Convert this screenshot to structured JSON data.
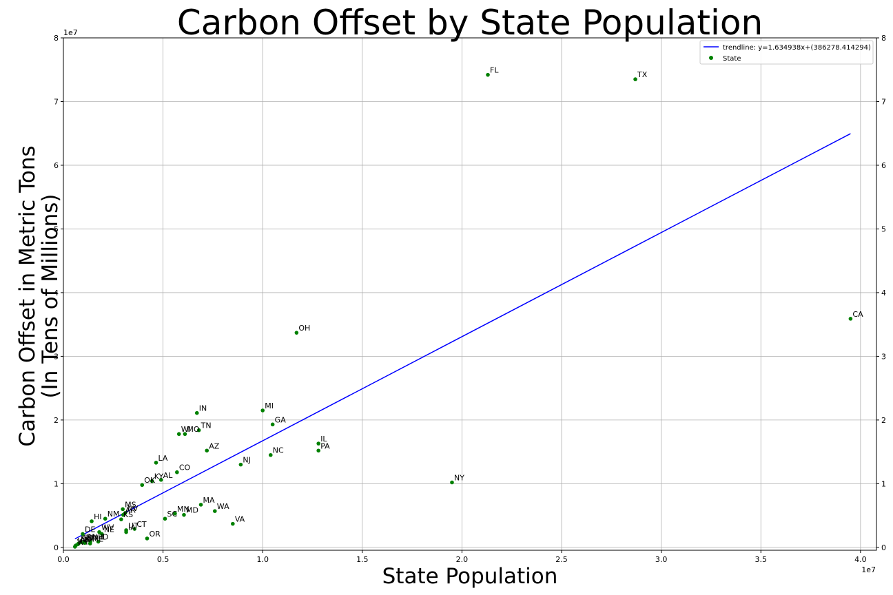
{
  "chart_data": {
    "type": "scatter",
    "title": "Carbon Offset by State Population",
    "xlabel": "State Population",
    "ylabel_line1": "Carbon Offset in Metric Tons",
    "ylabel_line2": "(In Tens of Millions)",
    "x_multiplier": "1e7",
    "y_multiplier": "1e7",
    "xlim": [
      0,
      40800000
    ],
    "ylim": [
      -450000,
      80000000
    ],
    "x_ticks": [
      0,
      5000000,
      10000000,
      15000000,
      20000000,
      25000000,
      30000000,
      35000000,
      40000000
    ],
    "x_tick_labels": [
      "0.0",
      "0.5",
      "1.0",
      "1.5",
      "2.0",
      "2.5",
      "3.0",
      "3.5",
      "4.0"
    ],
    "y_ticks": [
      0,
      10000000,
      20000000,
      30000000,
      40000000,
      50000000,
      60000000,
      70000000,
      80000000
    ],
    "y_tick_labels": [
      "0",
      "1",
      "2",
      "3",
      "4",
      "5",
      "6",
      "7",
      "8"
    ],
    "grid": true,
    "legend_position": "top-right",
    "colors": {
      "points": "#008000",
      "trendline": "#0000ff",
      "grid": "#b0b0b0"
    },
    "series": [
      {
        "name": "trendline: y=1.634938x+(386278.414294)",
        "type": "line",
        "slope": 1.634938,
        "intercept": 386278.414294,
        "x_range": [
          580000,
          39500000
        ]
      },
      {
        "name": "State",
        "type": "scatter",
        "points": [
          {
            "label": "FL",
            "x": 21300000,
            "y": 74200000
          },
          {
            "label": "TX",
            "x": 28700000,
            "y": 73500000
          },
          {
            "label": "CA",
            "x": 39500000,
            "y": 35900000
          },
          {
            "label": "OH",
            "x": 11700000,
            "y": 33700000
          },
          {
            "label": "MI",
            "x": 10000000,
            "y": 21500000
          },
          {
            "label": "IN",
            "x": 6700000,
            "y": 21100000
          },
          {
            "label": "GA",
            "x": 10500000,
            "y": 19300000
          },
          {
            "label": "TN",
            "x": 6800000,
            "y": 18400000
          },
          {
            "label": "WI",
            "x": 5800000,
            "y": 17800000
          },
          {
            "label": "MO",
            "x": 6100000,
            "y": 17800000
          },
          {
            "label": "IL",
            "x": 12800000,
            "y": 16300000
          },
          {
            "label": "PA",
            "x": 12800000,
            "y": 15200000
          },
          {
            "label": "AZ",
            "x": 7200000,
            "y": 15200000
          },
          {
            "label": "NC",
            "x": 10400000,
            "y": 14500000
          },
          {
            "label": "LA",
            "x": 4650000,
            "y": 13300000
          },
          {
            "label": "NJ",
            "x": 8900000,
            "y": 13000000
          },
          {
            "label": "CO",
            "x": 5700000,
            "y": 11800000
          },
          {
            "label": "KY",
            "x": 4450000,
            "y": 10400000
          },
          {
            "label": "AL",
            "x": 4900000,
            "y": 10600000
          },
          {
            "label": "NY",
            "x": 19500000,
            "y": 10200000
          },
          {
            "label": "OK",
            "x": 3950000,
            "y": 9800000
          },
          {
            "label": "MA",
            "x": 6900000,
            "y": 6700000
          },
          {
            "label": "MS",
            "x": 2980000,
            "y": 6000000
          },
          {
            "label": "WA",
            "x": 7600000,
            "y": 5700000
          },
          {
            "label": "NV",
            "x": 3100000,
            "y": 5400000
          },
          {
            "label": "AR",
            "x": 3000000,
            "y": 5100000
          },
          {
            "label": "MN",
            "x": 5600000,
            "y": 5300000
          },
          {
            "label": "MD",
            "x": 6050000,
            "y": 5100000
          },
          {
            "label": "NM",
            "x": 2100000,
            "y": 4500000
          },
          {
            "label": "KS",
            "x": 2900000,
            "y": 4400000
          },
          {
            "label": "SC",
            "x": 5100000,
            "y": 4500000
          },
          {
            "label": "HI",
            "x": 1420000,
            "y": 4100000
          },
          {
            "label": "VA",
            "x": 8500000,
            "y": 3700000
          },
          {
            "label": "UT",
            "x": 3150000,
            "y": 2700000
          },
          {
            "label": "CT",
            "x": 3570000,
            "y": 2900000
          },
          {
            "label": "IA",
            "x": 3150000,
            "y": 2400000
          },
          {
            "label": "WV",
            "x": 1800000,
            "y": 2400000
          },
          {
            "label": "NE",
            "x": 1930000,
            "y": 2100000
          },
          {
            "label": "DE",
            "x": 970000,
            "y": 2100000
          },
          {
            "label": "OR",
            "x": 4200000,
            "y": 1400000
          },
          {
            "label": "ID",
            "x": 1750000,
            "y": 900000
          },
          {
            "label": "NH",
            "x": 1350000,
            "y": 900000
          },
          {
            "label": "ME",
            "x": 1340000,
            "y": 600000
          },
          {
            "label": "RI",
            "x": 1060000,
            "y": 900000
          },
          {
            "label": "MT",
            "x": 1070000,
            "y": 700000
          },
          {
            "label": "SD",
            "x": 880000,
            "y": 800000
          },
          {
            "label": "ND",
            "x": 760000,
            "y": 600000
          },
          {
            "label": "VT",
            "x": 620000,
            "y": 300000
          },
          {
            "label": "WY",
            "x": 580000,
            "y": 100000
          },
          {
            "label": "AK",
            "x": 730000,
            "y": 500000
          }
        ]
      }
    ]
  }
}
